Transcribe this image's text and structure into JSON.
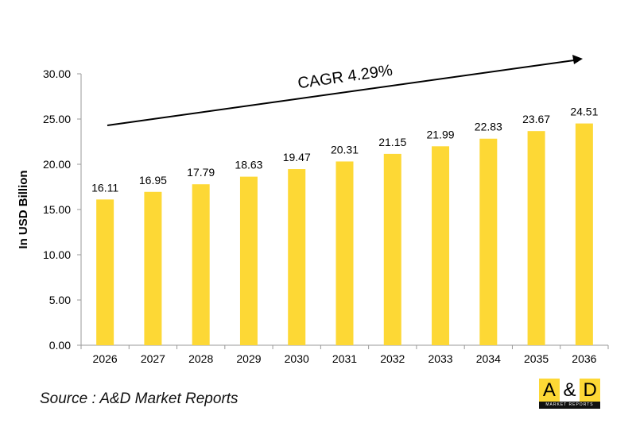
{
  "chart_data": {
    "type": "bar",
    "categories": [
      "2026",
      "2027",
      "2028",
      "2029",
      "2030",
      "2031",
      "2032",
      "2033",
      "2034",
      "2035",
      "2036"
    ],
    "values": [
      16.11,
      16.95,
      17.79,
      18.63,
      19.47,
      20.31,
      21.15,
      21.99,
      22.83,
      23.67,
      24.51
    ],
    "data_labels": [
      "16.11",
      "16.95",
      "17.79",
      "18.63",
      "19.47",
      "20.31",
      "21.15",
      "21.99",
      "22.83",
      "23.67",
      "24.51"
    ],
    "ylabel": "In USD Billion",
    "xlabel": "",
    "ylim": [
      0,
      30
    ],
    "yticks": [
      "0.00",
      "5.00",
      "10.00",
      "15.00",
      "20.00",
      "25.00",
      "30.00"
    ],
    "grid": false,
    "bar_color": "#FDD835",
    "annotation": "CAGR 4.29%"
  },
  "source": "Source : A&D Market Reports",
  "logo": {
    "letters": [
      "A",
      "&",
      "D"
    ],
    "subtitle": "MARKET REPORTS",
    "colors": [
      "#FDD835",
      "#ffffff",
      "#FDD835"
    ]
  }
}
